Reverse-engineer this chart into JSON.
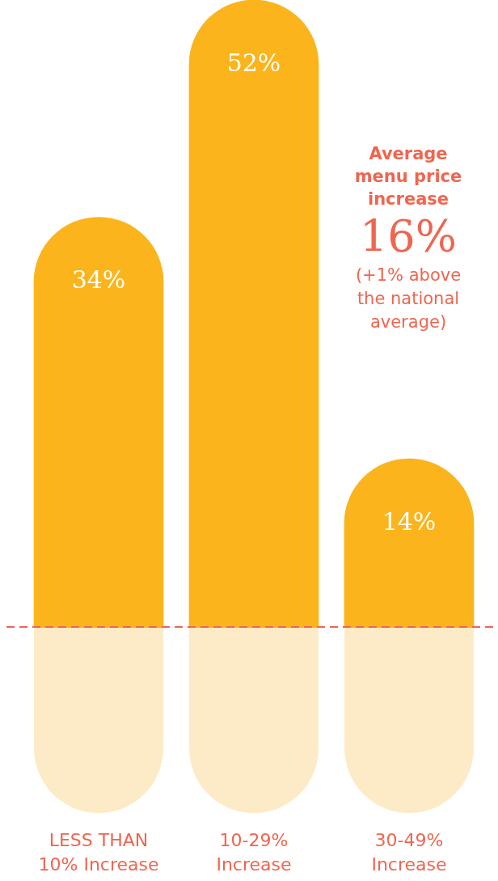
{
  "chart_data": {
    "type": "bar",
    "categories": [
      "LESS THAN 10% Increase",
      "10-29% Increase",
      "30-49% Increase"
    ],
    "values": [
      34,
      52,
      14
    ],
    "value_labels": [
      "34%",
      "52%",
      "14%"
    ],
    "color": "#fbb41b",
    "legend": false,
    "ref_lines": [
      {
        "axis": "y",
        "color": "#f0654f",
        "line_style": "dashed"
      }
    ],
    "annotations": [
      "Average menu price increase",
      "16%",
      "(+1% above the national average)"
    ]
  }
}
